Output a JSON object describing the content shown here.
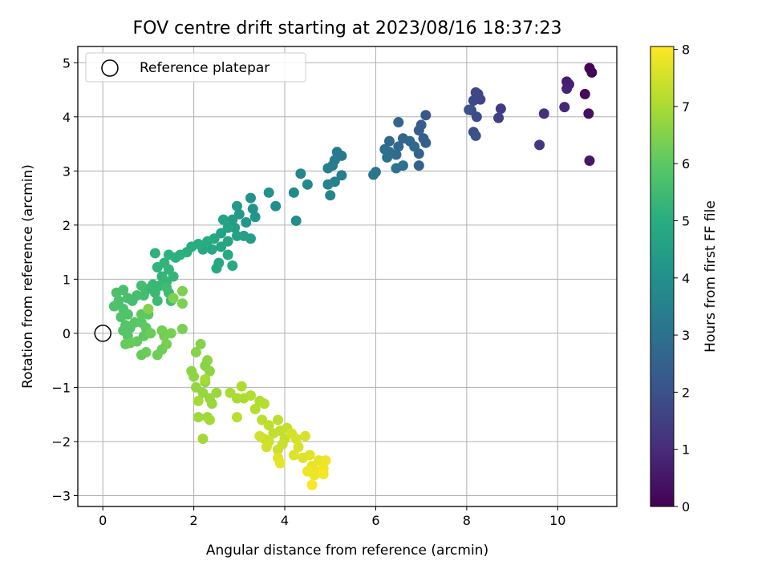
{
  "chart_data": {
    "type": "scatter",
    "title": "FOV centre drift starting at 2023/08/16 18:37:23",
    "xlabel": "Angular distance from reference (arcmin)",
    "ylabel": "Rotation from reference (arcmin)",
    "xlim": [
      -0.55,
      11.3
    ],
    "ylim": [
      -3.2,
      5.3
    ],
    "xticks": [
      0,
      2,
      4,
      6,
      8,
      10
    ],
    "yticks": [
      -3,
      -2,
      -1,
      0,
      1,
      2,
      3,
      4,
      5
    ],
    "grid": true,
    "legend": {
      "placement": "upper-left",
      "entries": [
        "Reference platepar"
      ]
    },
    "reference_point": {
      "x": 0,
      "y": 0
    },
    "colorbar": {
      "label": "Hours from first FF file",
      "colormap": "viridis",
      "range": [
        0,
        8.05
      ],
      "ticks": [
        0,
        1,
        2,
        3,
        4,
        5,
        6,
        7,
        8
      ]
    },
    "points": [
      [
        10.7,
        4.9,
        0.05
      ],
      [
        10.75,
        4.82,
        0.1
      ],
      [
        10.6,
        4.42,
        0.2
      ],
      [
        10.68,
        4.06,
        0.35
      ],
      [
        10.7,
        3.19,
        0.5
      ],
      [
        10.2,
        4.65,
        0.6
      ],
      [
        10.25,
        4.6,
        0.7
      ],
      [
        10.2,
        4.52,
        0.8
      ],
      [
        10.15,
        4.18,
        0.9
      ],
      [
        9.7,
        4.06,
        1.1
      ],
      [
        9.6,
        3.48,
        1.25
      ],
      [
        8.75,
        4.15,
        1.4
      ],
      [
        8.7,
        3.98,
        1.5
      ],
      [
        8.25,
        4.42,
        1.6
      ],
      [
        8.3,
        4.32,
        1.65
      ],
      [
        8.2,
        4.45,
        1.7
      ],
      [
        8.15,
        4.3,
        1.75
      ],
      [
        8.1,
        4.12,
        1.8
      ],
      [
        8.22,
        4.0,
        1.85
      ],
      [
        8.15,
        3.72,
        1.9
      ],
      [
        8.2,
        3.65,
        1.95
      ],
      [
        8.05,
        4.13,
        2.0
      ],
      [
        7.1,
        4.03,
        2.2
      ],
      [
        7.0,
        3.85,
        2.3
      ],
      [
        6.95,
        3.75,
        2.35
      ],
      [
        7.05,
        3.6,
        2.4
      ],
      [
        7.1,
        3.52,
        2.45
      ],
      [
        6.95,
        3.32,
        2.5
      ],
      [
        6.95,
        3.1,
        2.55
      ],
      [
        6.5,
        3.9,
        2.6
      ],
      [
        6.6,
        3.6,
        2.65
      ],
      [
        6.5,
        3.45,
        2.7
      ],
      [
        6.3,
        3.55,
        2.75
      ],
      [
        6.45,
        3.3,
        2.8
      ],
      [
        6.3,
        3.35,
        2.85
      ],
      [
        6.2,
        3.4,
        2.9
      ],
      [
        6.25,
        3.25,
        2.95
      ],
      [
        6.6,
        3.1,
        3.0
      ],
      [
        6.45,
        3.05,
        3.05
      ],
      [
        6.0,
        2.98,
        3.1
      ],
      [
        5.95,
        2.93,
        3.15
      ],
      [
        6.75,
        3.55,
        2.7
      ],
      [
        6.85,
        3.45,
        2.75
      ],
      [
        5.15,
        3.35,
        3.2
      ],
      [
        5.25,
        3.28,
        3.25
      ],
      [
        5.1,
        3.2,
        3.3
      ],
      [
        5.05,
        3.1,
        3.35
      ],
      [
        4.95,
        3.05,
        3.4
      ],
      [
        5.25,
        2.92,
        3.45
      ],
      [
        5.1,
        2.8,
        3.5
      ],
      [
        4.95,
        2.75,
        3.55
      ],
      [
        5.0,
        2.55,
        3.6
      ],
      [
        4.35,
        2.95,
        3.7
      ],
      [
        4.5,
        2.75,
        3.75
      ],
      [
        4.2,
        2.6,
        3.8
      ],
      [
        4.25,
        2.08,
        3.9
      ],
      [
        3.8,
        2.35,
        4.0
      ],
      [
        3.65,
        2.6,
        4.05
      ],
      [
        3.25,
        2.5,
        4.1
      ],
      [
        3.3,
        2.3,
        4.15
      ],
      [
        3.35,
        2.15,
        4.2
      ],
      [
        3.15,
        2.05,
        4.25
      ],
      [
        2.95,
        2.35,
        4.3
      ],
      [
        3.0,
        2.2,
        4.35
      ],
      [
        2.85,
        2.1,
        4.4
      ],
      [
        2.9,
        1.95,
        4.45
      ],
      [
        3.25,
        1.75,
        4.5
      ],
      [
        3.1,
        1.8,
        4.55
      ],
      [
        2.95,
        1.8,
        4.6
      ],
      [
        2.75,
        1.95,
        4.6
      ],
      [
        2.65,
        2.1,
        4.65
      ],
      [
        2.6,
        1.85,
        4.65
      ],
      [
        2.75,
        1.7,
        4.7
      ],
      [
        2.6,
        1.6,
        4.7
      ],
      [
        2.45,
        1.75,
        4.75
      ],
      [
        2.4,
        1.55,
        4.8
      ],
      [
        2.55,
        1.3,
        4.8
      ],
      [
        2.75,
        1.45,
        4.85
      ],
      [
        2.85,
        1.25,
        4.85
      ],
      [
        2.5,
        1.2,
        4.9
      ],
      [
        2.2,
        1.55,
        4.9
      ],
      [
        2.3,
        1.7,
        4.95
      ],
      [
        2.1,
        1.65,
        5.0
      ],
      [
        1.95,
        1.6,
        5.0
      ],
      [
        1.85,
        1.5,
        5.05
      ],
      [
        1.7,
        1.45,
        5.1
      ],
      [
        1.6,
        1.4,
        5.1
      ],
      [
        1.45,
        1.45,
        5.15
      ],
      [
        1.15,
        1.48,
        5.15
      ],
      [
        1.35,
        1.3,
        5.2
      ],
      [
        1.2,
        1.22,
        5.2
      ],
      [
        1.45,
        1.18,
        5.25
      ],
      [
        1.3,
        1.05,
        5.25
      ],
      [
        1.55,
        1.05,
        5.3
      ],
      [
        1.4,
        0.95,
        5.3
      ],
      [
        1.25,
        0.88,
        5.35
      ],
      [
        1.1,
        0.9,
        5.35
      ],
      [
        1.15,
        0.75,
        5.4
      ],
      [
        1.0,
        0.82,
        5.4
      ],
      [
        1.2,
        0.6,
        5.45
      ],
      [
        1.45,
        0.75,
        5.45
      ],
      [
        1.5,
        0.6,
        5.5
      ],
      [
        1.4,
        0.85,
        5.5
      ],
      [
        0.85,
        0.88,
        5.55
      ],
      [
        0.9,
        0.7,
        5.55
      ],
      [
        0.75,
        0.7,
        5.6
      ],
      [
        0.65,
        0.6,
        5.6
      ],
      [
        0.55,
        0.65,
        5.65
      ],
      [
        0.45,
        0.8,
        5.65
      ],
      [
        0.3,
        0.75,
        5.7
      ],
      [
        0.35,
        0.6,
        5.7
      ],
      [
        0.25,
        0.5,
        5.75
      ],
      [
        0.45,
        0.45,
        5.75
      ],
      [
        0.55,
        0.35,
        5.8
      ],
      [
        0.4,
        0.3,
        5.8
      ],
      [
        0.5,
        0.15,
        5.85
      ],
      [
        0.6,
        0.1,
        5.85
      ],
      [
        0.45,
        0.05,
        5.9
      ],
      [
        0.55,
        -0.05,
        5.9
      ],
      [
        0.7,
        0.2,
        5.95
      ],
      [
        0.85,
        0.2,
        5.95
      ],
      [
        0.95,
        0.1,
        6.0
      ],
      [
        1.0,
        0.35,
        6.0
      ],
      [
        0.85,
        0.35,
        6.05
      ],
      [
        0.9,
        -0.05,
        6.05
      ],
      [
        0.75,
        -0.15,
        6.1
      ],
      [
        0.5,
        -0.2,
        6.1
      ],
      [
        0.6,
        -0.18,
        6.15
      ],
      [
        0.85,
        -0.4,
        6.15
      ],
      [
        0.95,
        -0.35,
        6.2
      ],
      [
        1.05,
        0.0,
        6.2
      ],
      [
        1.2,
        -0.4,
        6.25
      ],
      [
        1.3,
        -0.3,
        6.25
      ],
      [
        1.35,
        -0.05,
        6.3
      ],
      [
        1.3,
        0.05,
        6.3
      ],
      [
        1.5,
        0.0,
        6.35
      ],
      [
        1.4,
        -0.2,
        6.35
      ],
      [
        1.75,
        0.08,
        6.4
      ],
      [
        1.75,
        0.55,
        6.4
      ],
      [
        1.75,
        0.78,
        6.45
      ],
      [
        1.55,
        0.65,
        6.45
      ],
      [
        1.0,
        0.45,
        6.5
      ],
      [
        2.15,
        -0.2,
        6.5
      ],
      [
        2.05,
        -0.35,
        6.55
      ],
      [
        2.25,
        -0.6,
        6.55
      ],
      [
        2.3,
        -0.5,
        6.6
      ],
      [
        1.95,
        -0.7,
        6.6
      ],
      [
        2.0,
        -0.8,
        6.65
      ],
      [
        2.35,
        -0.7,
        6.65
      ],
      [
        2.25,
        -0.9,
        6.7
      ],
      [
        2.05,
        -1.0,
        6.7
      ],
      [
        2.2,
        -1.1,
        6.75
      ],
      [
        2.35,
        -1.2,
        6.75
      ],
      [
        2.5,
        -1.1,
        6.8
      ],
      [
        2.4,
        -1.3,
        6.8
      ],
      [
        2.3,
        -1.55,
        6.85
      ],
      [
        2.1,
        -1.55,
        6.85
      ],
      [
        2.35,
        -1.6,
        6.9
      ],
      [
        2.2,
        -1.95,
        6.9
      ],
      [
        2.25,
        -0.85,
        6.95
      ],
      [
        2.1,
        -1.25,
        6.95
      ],
      [
        2.8,
        -1.1,
        7.0
      ],
      [
        2.95,
        -1.2,
        7.0
      ],
      [
        3.05,
        -0.98,
        7.05
      ],
      [
        3.1,
        -1.2,
        7.05
      ],
      [
        3.25,
        -1.15,
        7.1
      ],
      [
        3.45,
        -1.25,
        7.1
      ],
      [
        3.55,
        -1.3,
        7.15
      ],
      [
        3.35,
        -1.4,
        7.15
      ],
      [
        2.95,
        -1.55,
        7.2
      ],
      [
        3.5,
        -1.6,
        7.2
      ],
      [
        3.65,
        -1.7,
        7.25
      ],
      [
        3.85,
        -1.6,
        7.25
      ],
      [
        3.75,
        -1.85,
        7.3
      ],
      [
        3.9,
        -1.8,
        7.3
      ],
      [
        4.05,
        -1.75,
        7.35
      ],
      [
        4.0,
        -1.95,
        7.35
      ],
      [
        3.95,
        -2.05,
        7.4
      ],
      [
        3.85,
        -2.15,
        7.4
      ],
      [
        3.65,
        -2.0,
        7.45
      ],
      [
        3.55,
        -1.95,
        7.45
      ],
      [
        3.45,
        -1.9,
        7.5
      ],
      [
        3.6,
        -2.1,
        7.5
      ],
      [
        4.25,
        -1.95,
        7.55
      ],
      [
        4.15,
        -1.85,
        7.55
      ],
      [
        4.45,
        -1.9,
        7.6
      ],
      [
        4.3,
        -2.1,
        7.6
      ],
      [
        4.2,
        -2.25,
        7.65
      ],
      [
        4.4,
        -2.3,
        7.65
      ],
      [
        4.55,
        -2.25,
        7.7
      ],
      [
        3.85,
        -2.3,
        7.7
      ],
      [
        3.9,
        -2.4,
        7.75
      ],
      [
        4.75,
        -2.35,
        7.75
      ],
      [
        4.6,
        -2.45,
        7.8
      ],
      [
        4.7,
        -2.55,
        7.8
      ],
      [
        4.5,
        -2.55,
        7.85
      ],
      [
        4.65,
        -2.62,
        7.85
      ],
      [
        4.85,
        -2.5,
        7.9
      ],
      [
        4.9,
        -2.35,
        7.9
      ],
      [
        4.85,
        -2.6,
        7.95
      ],
      [
        4.6,
        -2.8,
        8.0
      ]
    ]
  }
}
